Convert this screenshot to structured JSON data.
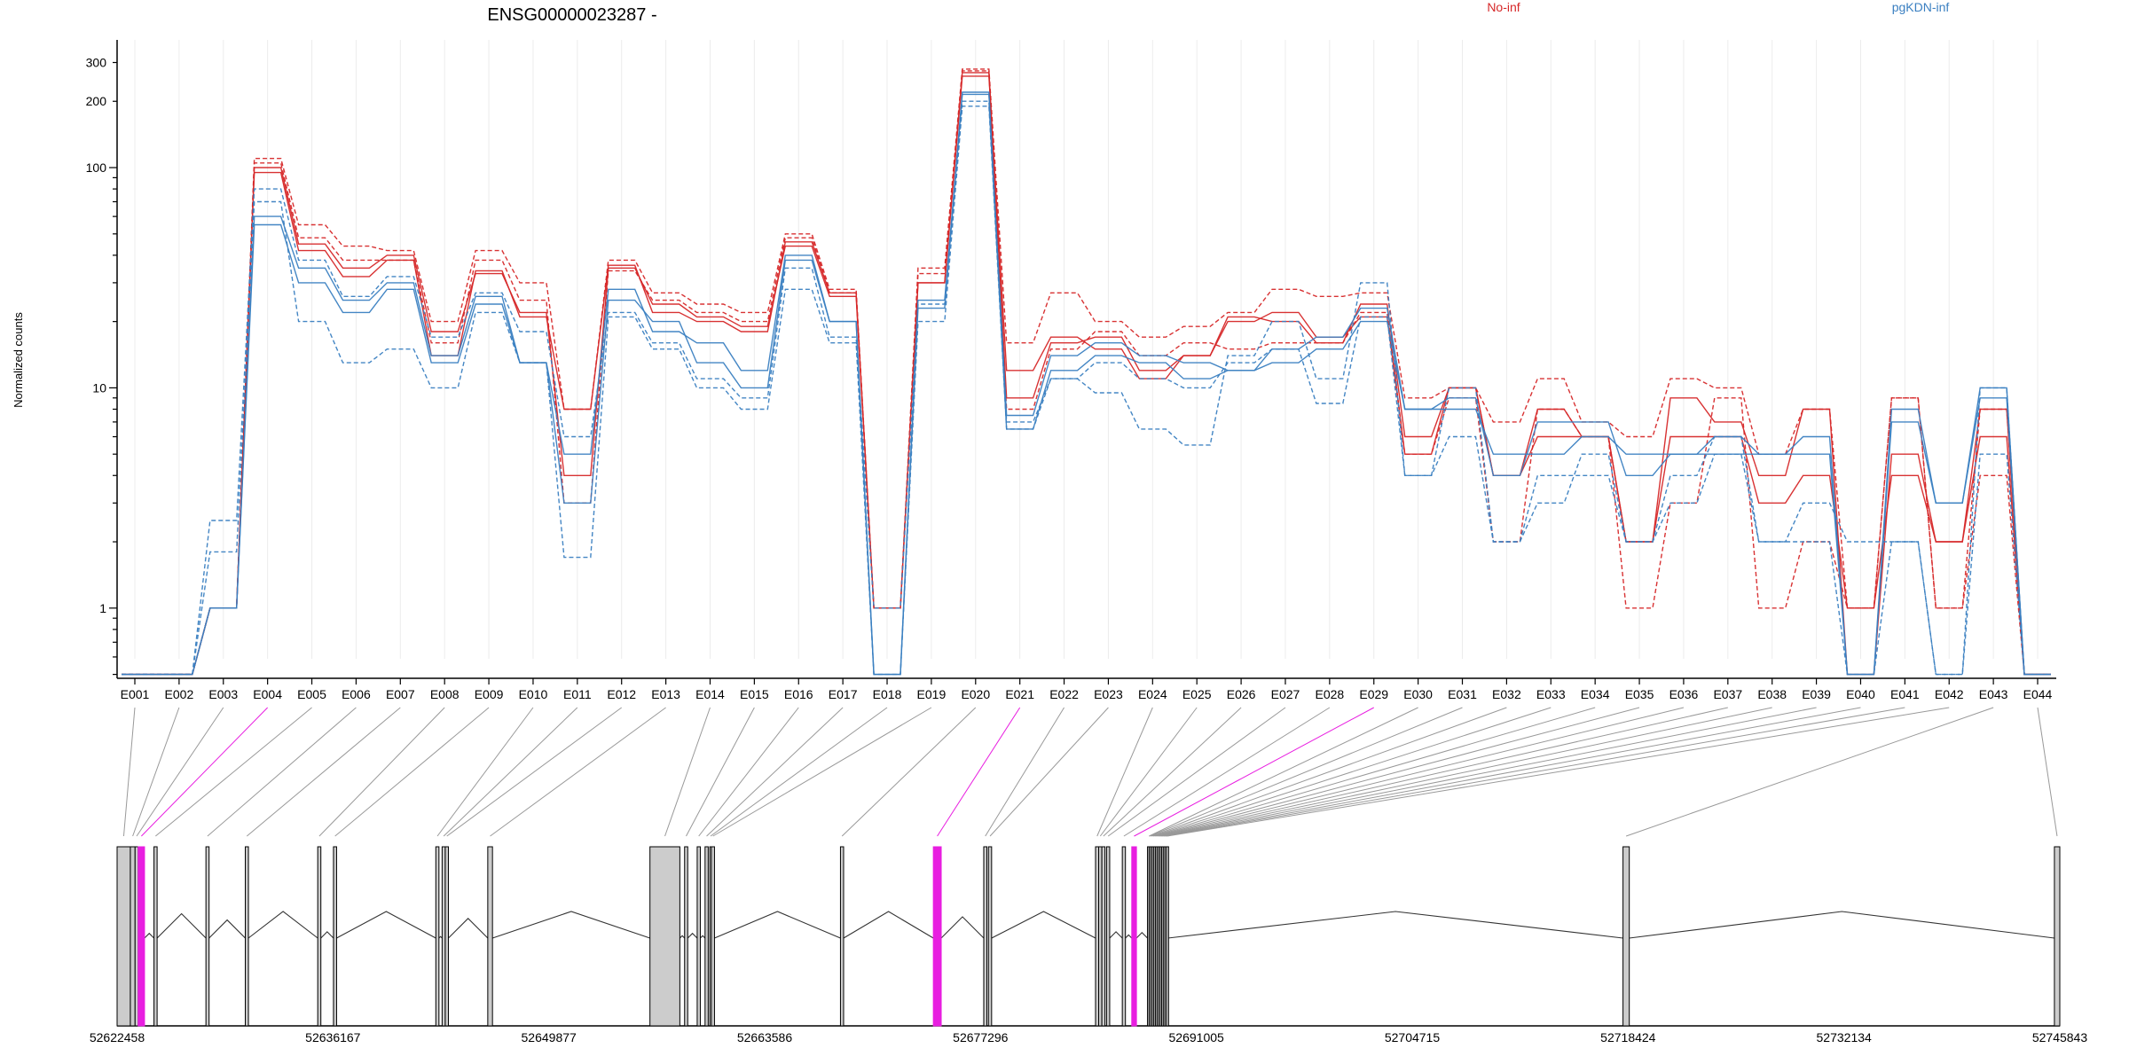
{
  "chart_data": {
    "type": "line",
    "title": "ENSG00000023287 -",
    "ylabel": "Normalized counts",
    "y_scale": "log",
    "ylim": [
      0.48,
      380
    ],
    "yticks": [
      1,
      10,
      100,
      200,
      300
    ],
    "ytick_labels": [
      "1",
      "10",
      "100",
      "200",
      "300"
    ],
    "grid": "vertical",
    "legend_placement": "top-right",
    "categories": [
      "E001",
      "E002",
      "E003",
      "E004",
      "E005",
      "E006",
      "E007",
      "E008",
      "E009",
      "E010",
      "E011",
      "E012",
      "E013",
      "E014",
      "E015",
      "E016",
      "E017",
      "E018",
      "E019",
      "E020",
      "E021",
      "E022",
      "E023",
      "E024",
      "E025",
      "E026",
      "E027",
      "E028",
      "E029",
      "E030",
      "E031",
      "E032",
      "E033",
      "E034",
      "E035",
      "E036",
      "E037",
      "E038",
      "E039",
      "E040",
      "E041",
      "E042",
      "E043",
      "E044"
    ],
    "groups": [
      {
        "name": "No-inf",
        "color": "#d62728"
      },
      {
        "name": "pgKDN-inf",
        "color": "#3a7fc1"
      }
    ],
    "series": [
      {
        "group": "No-inf",
        "style": "solid",
        "values": [
          0.5,
          0.5,
          1,
          100,
          45,
          35,
          40,
          18,
          33,
          22,
          4,
          35,
          24,
          21,
          19,
          44,
          26,
          1,
          30,
          270,
          9,
          16,
          17,
          12,
          14,
          20,
          22,
          17,
          21,
          5,
          10,
          4,
          6,
          6,
          2,
          6,
          6,
          3,
          4,
          1,
          4,
          2,
          6,
          0.5
        ]
      },
      {
        "group": "No-inf",
        "style": "solid",
        "values": [
          0.5,
          0.5,
          1,
          95,
          42,
          32,
          38,
          14,
          34,
          21,
          8,
          36,
          22,
          20,
          18,
          46,
          27,
          1,
          30,
          260,
          12,
          17,
          15,
          11,
          14,
          21,
          20,
          16,
          24,
          6,
          10,
          4,
          8,
          6,
          2,
          9,
          7,
          4,
          8,
          0.5,
          5,
          2,
          8,
          0.5
        ]
      },
      {
        "group": "No-inf",
        "style": "dashed",
        "values": [
          0.5,
          0.5,
          1,
          110,
          55,
          44,
          42,
          20,
          42,
          30,
          8,
          38,
          27,
          24,
          22,
          50,
          28,
          1,
          35,
          280,
          16,
          27,
          20,
          17,
          19,
          22,
          28,
          26,
          27,
          9,
          10,
          7,
          11,
          7,
          6,
          11,
          10,
          5,
          8,
          1,
          9,
          1,
          8,
          0.5
        ]
      },
      {
        "group": "No-inf",
        "style": "dashed",
        "values": [
          0.5,
          0.5,
          1,
          105,
          48,
          38,
          38,
          16,
          38,
          25,
          3,
          34,
          25,
          22,
          20,
          48,
          27,
          1,
          33,
          275,
          8,
          15,
          18,
          14,
          16,
          15,
          16,
          16,
          22,
          5,
          9,
          2,
          8,
          6,
          1,
          3,
          9,
          1,
          2,
          1,
          9,
          1,
          4,
          0.5
        ]
      },
      {
        "group": "pgKDN-inf",
        "style": "solid",
        "values": [
          0.5,
          0.5,
          1,
          55,
          30,
          22,
          28,
          13,
          24,
          13,
          3,
          25,
          20,
          13,
          10,
          38,
          20,
          0.5,
          23,
          220,
          6.5,
          12,
          14,
          13,
          11,
          12,
          13,
          15,
          20,
          8,
          8,
          5,
          5,
          6,
          5,
          5,
          5,
          5,
          5,
          0.5,
          7,
          3,
          9,
          0.5
        ]
      },
      {
        "group": "pgKDN-inf",
        "style": "solid",
        "values": [
          0.5,
          0.5,
          1,
          60,
          35,
          25,
          30,
          14,
          26,
          13,
          5,
          28,
          18,
          16,
          12,
          40,
          20,
          0.5,
          25,
          215,
          7.5,
          14,
          16,
          14,
          13,
          12,
          15,
          17,
          23,
          8,
          9,
          4,
          7,
          7,
          4,
          5,
          6,
          5,
          6,
          0.5,
          8,
          3,
          10,
          0.5
        ]
      },
      {
        "group": "pgKDN-inf",
        "style": "dashed",
        "values": [
          0.5,
          0.5,
          2.5,
          80,
          38,
          26,
          32,
          17,
          27,
          18,
          6,
          22,
          16,
          11,
          9,
          35,
          17,
          1,
          24,
          200,
          7,
          11,
          9.5,
          6.5,
          5.5,
          14,
          20,
          11,
          30,
          4,
          10,
          2,
          3,
          5,
          2,
          3,
          5,
          2,
          3,
          2,
          2,
          0.5,
          10,
          0.5
        ]
      },
      {
        "group": "pgKDN-inf",
        "style": "dashed",
        "values": [
          0.5,
          0.5,
          1.8,
          70,
          20,
          13,
          15,
          10,
          22,
          13,
          1.7,
          21,
          15,
          10,
          8,
          28,
          16,
          0.5,
          20,
          190,
          6.5,
          11,
          13,
          11,
          10,
          13,
          15,
          8.5,
          21,
          4,
          6,
          2,
          4,
          4,
          2,
          4,
          6,
          2,
          2,
          0.5,
          2,
          0.5,
          5,
          0.5
        ]
      }
    ],
    "gene_model": {
      "coordinate_labels": [
        "52622458",
        "52636167",
        "52649877",
        "52663586",
        "52677296",
        "52691005",
        "52704715",
        "52718424",
        "52732134",
        "52745843"
      ],
      "coord_min": 52622458,
      "coord_max": 52745843,
      "highlight_color": "#e81ee0",
      "exon_fill": "#cccccc",
      "exons": [
        {
          "id": "E001",
          "start": 52622458,
          "end": 52623300
        },
        {
          "id": "E002",
          "start": 52623300,
          "end": 52623600
        },
        {
          "id": "E003",
          "start": 52623600,
          "end": 52623800
        },
        {
          "id": "E004",
          "start": 52623800,
          "end": 52624200
        },
        {
          "id": "E005",
          "start": 52624800,
          "end": 52625000
        },
        {
          "id": "E006",
          "start": 52628100,
          "end": 52628300
        },
        {
          "id": "E007",
          "start": 52630600,
          "end": 52630800
        },
        {
          "id": "E008",
          "start": 52635200,
          "end": 52635400
        },
        {
          "id": "E009",
          "start": 52636200,
          "end": 52636400
        },
        {
          "id": "E010",
          "start": 52642700,
          "end": 52642900
        },
        {
          "id": "E011",
          "start": 52643100,
          "end": 52643300
        },
        {
          "id": "E012",
          "start": 52643300,
          "end": 52643500
        },
        {
          "id": "E013",
          "start": 52646000,
          "end": 52646300
        },
        {
          "id": "E014",
          "start": 52656300,
          "end": 52658200
        },
        {
          "id": "E015",
          "start": 52658500,
          "end": 52658700
        },
        {
          "id": "E016",
          "start": 52659300,
          "end": 52659500
        },
        {
          "id": "E017",
          "start": 52659800,
          "end": 52660000
        },
        {
          "id": "E018",
          "start": 52660100,
          "end": 52660200
        },
        {
          "id": "E019",
          "start": 52660200,
          "end": 52660400
        },
        {
          "id": "E020",
          "start": 52668400,
          "end": 52668600
        },
        {
          "id": "E021",
          "start": 52674300,
          "end": 52674800
        },
        {
          "id": "E022",
          "start": 52677500,
          "end": 52677700
        },
        {
          "id": "E023",
          "start": 52677800,
          "end": 52678000
        },
        {
          "id": "E024",
          "start": 52684600,
          "end": 52684800
        },
        {
          "id": "E025",
          "start": 52684800,
          "end": 52685000
        },
        {
          "id": "E026",
          "start": 52685000,
          "end": 52685200
        },
        {
          "id": "E027",
          "start": 52685300,
          "end": 52685500
        },
        {
          "id": "E028",
          "start": 52686300,
          "end": 52686500
        },
        {
          "id": "E029",
          "start": 52686900,
          "end": 52687200
        },
        {
          "id": "E030",
          "start": 52687900,
          "end": 52688100
        },
        {
          "id": "E031",
          "start": 52688000,
          "end": 52688100
        },
        {
          "id": "E032",
          "start": 52688100,
          "end": 52688200
        },
        {
          "id": "E033",
          "start": 52688200,
          "end": 52688300
        },
        {
          "id": "E034",
          "start": 52688300,
          "end": 52688400
        },
        {
          "id": "E035",
          "start": 52688400,
          "end": 52688500
        },
        {
          "id": "E036",
          "start": 52688500,
          "end": 52688600
        },
        {
          "id": "E037",
          "start": 52688600,
          "end": 52688700
        },
        {
          "id": "E038",
          "start": 52688700,
          "end": 52688800
        },
        {
          "id": "E039",
          "start": 52688800,
          "end": 52688900
        },
        {
          "id": "E040",
          "start": 52688900,
          "end": 52689000
        },
        {
          "id": "E041",
          "start": 52689000,
          "end": 52689100
        },
        {
          "id": "E042",
          "start": 52689100,
          "end": 52689200
        },
        {
          "id": "E043",
          "start": 52718100,
          "end": 52718500
        },
        {
          "id": "E044",
          "start": 52745500,
          "end": 52745843
        }
      ],
      "highlighted_exons": [
        "E004",
        "E021",
        "E029"
      ]
    }
  }
}
